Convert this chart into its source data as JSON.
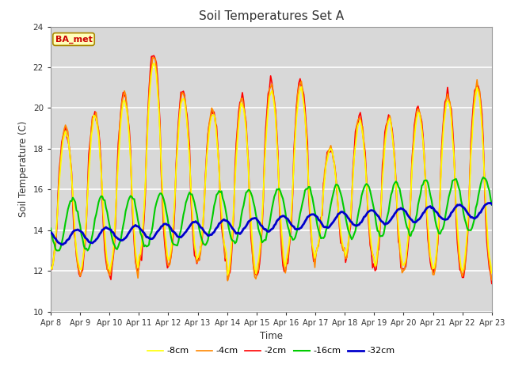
{
  "title": "Soil Temperatures Set A",
  "xlabel": "Time",
  "ylabel": "Soil Temperature (C)",
  "ylim": [
    10,
    24
  ],
  "yticks": [
    10,
    12,
    14,
    16,
    18,
    20,
    22,
    24
  ],
  "x_labels": [
    "Apr 8",
    "Apr 9",
    "Apr 10",
    "Apr 11",
    "Apr 12",
    "Apr 13",
    "Apr 14",
    "Apr 15",
    "Apr 16",
    "Apr 17",
    "Apr 18",
    "Apr 19",
    "Apr 20",
    "Apr 21",
    "Apr 22",
    "Apr 23"
  ],
  "legend_labels": [
    "-2cm",
    "-4cm",
    "-8cm",
    "-16cm",
    "-32cm"
  ],
  "line_colors": [
    "#ff0000",
    "#ff8800",
    "#ffff00",
    "#00cc00",
    "#0000cc"
  ],
  "line_widths": [
    1.2,
    1.2,
    1.2,
    1.5,
    2.0
  ],
  "annotation_text": "BA_met",
  "annotation_color": "#cc0000",
  "annotation_bg": "#ffffbb",
  "fig_bg": "#ffffff",
  "plot_bg": "#d8d8d8",
  "grid_color": "#ffffff",
  "n_points": 360,
  "figsize": [
    6.4,
    4.8
  ],
  "dpi": 100
}
